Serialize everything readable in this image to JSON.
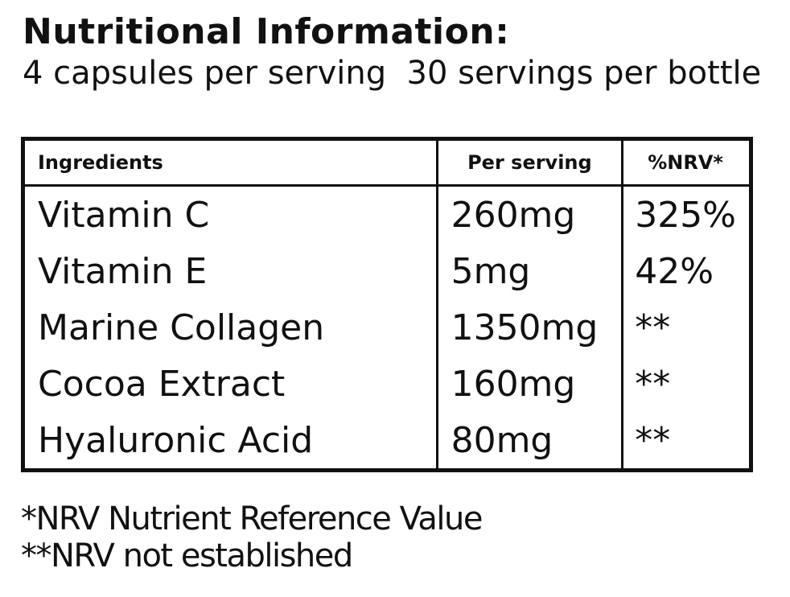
{
  "header": {
    "title": "Nutritional Information:",
    "subtitle": "4 capsules per serving  30 servings per bottle"
  },
  "table": {
    "columns": [
      "Ingredients",
      "Per serving",
      "%NRV*"
    ],
    "rows": [
      [
        "Vitamin C",
        "260mg",
        "325%"
      ],
      [
        "Vitamin E",
        "5mg",
        "42%"
      ],
      [
        "Marine Collagen",
        "1350mg",
        "**"
      ],
      [
        "Cocoa Extract",
        "160mg",
        "**"
      ],
      [
        "Hyaluronic Acid",
        "80mg",
        "**"
      ]
    ]
  },
  "notes": [
    "*NRV Nutrient Reference Value",
    "**NRV not established"
  ]
}
